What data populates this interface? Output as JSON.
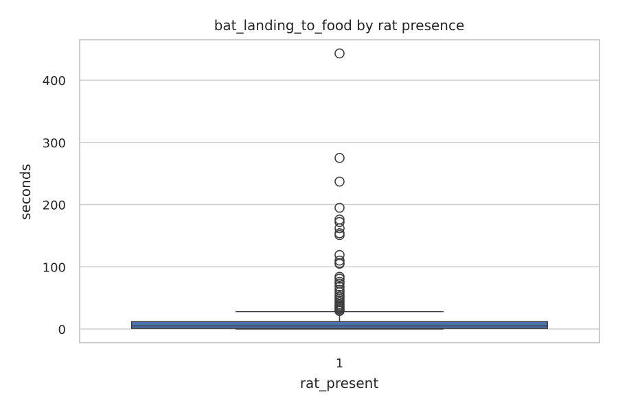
{
  "chart_data": {
    "type": "box",
    "title": "bat_landing_to_food by rat presence",
    "xlabel": "rat_present",
    "ylabel": "seconds",
    "categories": [
      "1"
    ],
    "ylim": [
      -22,
      465
    ],
    "yticks": [
      0,
      100,
      200,
      300,
      400
    ],
    "grid": true,
    "legend": "none",
    "colors": {
      "box": "#4c72b0",
      "line": "#3d3d3d",
      "grid": "#cccccc",
      "spine": "#cccccc"
    },
    "boxes": [
      {
        "category": "1",
        "min": 0,
        "q1": 1,
        "median": 5,
        "q3": 12,
        "max": 28,
        "outliers": [
          443,
          275,
          237,
          195,
          176,
          172,
          162,
          154,
          151,
          119,
          110,
          106,
          105,
          84,
          81,
          76,
          73,
          68,
          63,
          59,
          55,
          52,
          49,
          46,
          43,
          40,
          38,
          36,
          34,
          32,
          30,
          29
        ]
      }
    ]
  }
}
